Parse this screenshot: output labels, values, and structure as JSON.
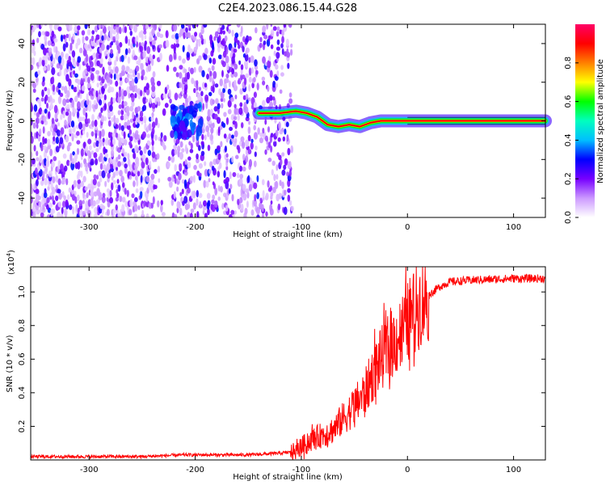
{
  "title": "C2E4.2023.086.15.44.G28",
  "chart_data": [
    {
      "type": "heatmap",
      "xlabel": "Height of straight line (km)",
      "ylabel": "Frequency (Hz)",
      "xlim": [
        -355,
        130
      ],
      "ylim": [
        -50,
        50
      ],
      "xticks": [
        -300,
        -200,
        -100,
        0,
        100
      ],
      "yticks": [
        -40,
        -20,
        0,
        20,
        40
      ],
      "colorbar": {
        "label": "Normalized spectral amplitude",
        "range": [
          0,
          1
        ],
        "ticks": [
          0.0,
          0.2,
          0.4,
          0.6,
          0.8
        ],
        "tick_labels": [
          "0.0",
          "0.2",
          "0.4",
          "0.6",
          "0.8"
        ],
        "colormap": [
          "#ffffff",
          "#cc99ff",
          "#7700ff",
          "#0000ff",
          "#00bfff",
          "#00ffbf",
          "#00ff00",
          "#ffff00",
          "#ff8000",
          "#ff0000",
          "#ff0066"
        ]
      },
      "signal_trace": [
        {
          "x": -140,
          "f": 4
        },
        {
          "x": -120,
          "f": 4
        },
        {
          "x": -105,
          "f": 5
        },
        {
          "x": -95,
          "f": 4
        },
        {
          "x": -85,
          "f": 2
        },
        {
          "x": -75,
          "f": -2
        },
        {
          "x": -65,
          "f": -3
        },
        {
          "x": -55,
          "f": -2
        },
        {
          "x": -45,
          "f": -3
        },
        {
          "x": -35,
          "f": -1
        },
        {
          "x": -25,
          "f": 0
        },
        {
          "x": -15,
          "f": 0
        },
        {
          "x": 0,
          "f": 0
        },
        {
          "x": 130,
          "f": 0
        }
      ],
      "grid": false
    },
    {
      "type": "line",
      "series": [
        {
          "color": "#ff0000",
          "x": [
            -355,
            -250,
            -210,
            -190,
            -150,
            -120,
            -105,
            -100,
            -90,
            -80,
            -70,
            -60,
            -50,
            -40,
            -30,
            -20,
            -10,
            0,
            10,
            20,
            30,
            40,
            60,
            100,
            130
          ],
          "values": [
            0.02,
            0.02,
            0.03,
            0.03,
            0.03,
            0.04,
            0.05,
            0.08,
            0.12,
            0.15,
            0.18,
            0.25,
            0.32,
            0.4,
            0.55,
            0.65,
            0.72,
            0.82,
            0.92,
            0.98,
            1.03,
            1.06,
            1.07,
            1.08,
            1.08
          ]
        }
      ],
      "multiplier_label": "(x10",
      "multiplier_exponent": "4",
      "xlabel": "Height of straight line (km)",
      "ylabel": "SNR (10 * v/v)",
      "xlim": [
        -355,
        130
      ],
      "ylim": [
        0,
        1.15
      ],
      "xticks": [
        -300,
        -200,
        -100,
        0,
        100
      ],
      "yticks": [
        0.2,
        0.4,
        0.6,
        0.8,
        1.0
      ],
      "ytick_labels": [
        "0.2",
        "0.4",
        "0.6",
        "0.8",
        "1.0"
      ],
      "grid": false
    }
  ]
}
